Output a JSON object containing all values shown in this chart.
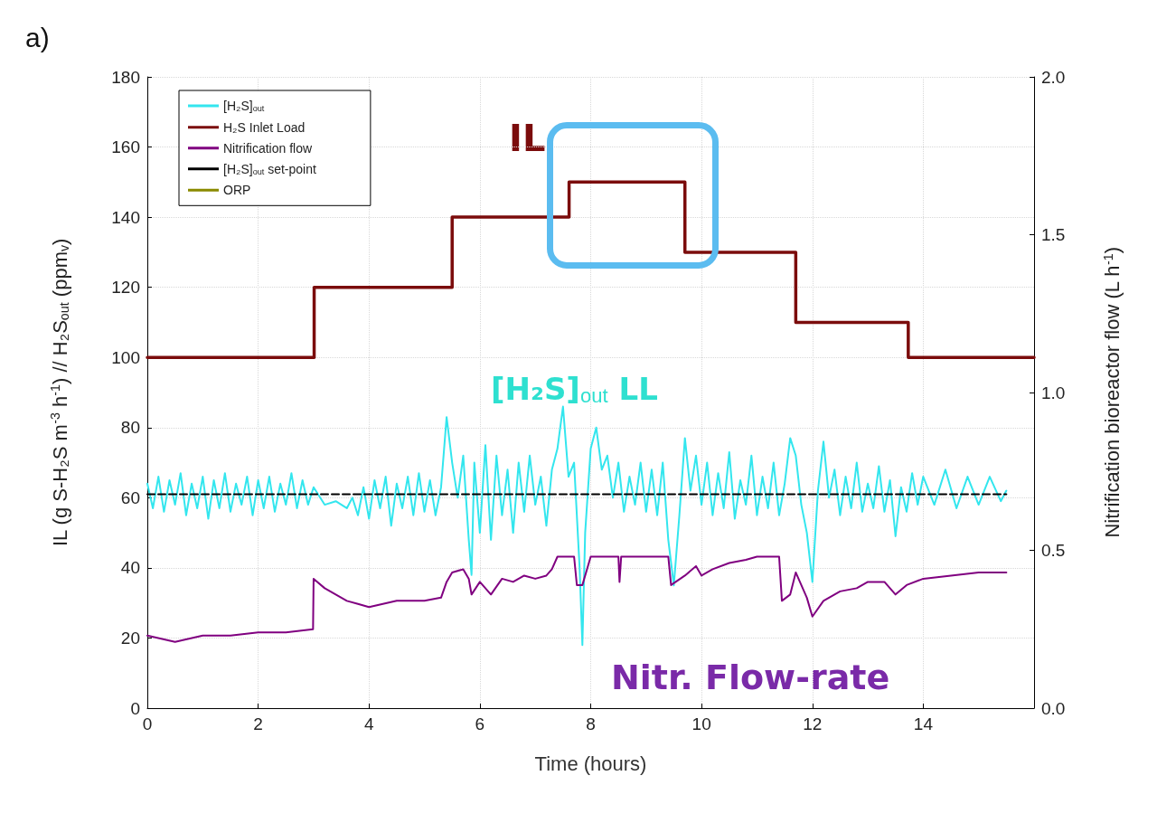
{
  "chart_data": {
    "type": "line",
    "title": "a)",
    "xlabel": "Time (hours)",
    "ylabel": "IL (g S-H₂S m$^{-3}$ h$^{-1}$) // H₂S$_{out}$ (ppm$_{v}$)",
    "y2label": "Nitrification bioreactor flow (L h$^{-1}$)",
    "annotations": [
      "IL",
      "[H₂S]$_{out}$ LL",
      "Nitr. Flow-rate"
    ],
    "xlim": [
      0,
      16
    ],
    "xticks": [
      0,
      2,
      4,
      6,
      8,
      10,
      12,
      14
    ],
    "ylim": [
      0,
      180
    ],
    "yticks": [
      0,
      20,
      40,
      60,
      80,
      100,
      120,
      140,
      160,
      180
    ],
    "y2lim": [
      0,
      2
    ],
    "y2ticks": [
      {
        "value": 0,
        "label": "0.0"
      },
      {
        "value": 0.5,
        "label": "0.5"
      },
      {
        "value": 1,
        "label": "1.0"
      },
      {
        "value": 1.5,
        "label": "1.5"
      },
      {
        "value": 2,
        "label": "2.0"
      }
    ],
    "grid": true,
    "legend": "top left",
    "marker": "none",
    "series": [
      {
        "name": "[H₂S]$_{out}$",
        "color": "#33e6ee",
        "x": [
          0,
          0.1,
          0.2,
          0.3,
          0.4,
          0.5,
          0.6,
          0.7,
          0.8,
          0.9,
          1.0,
          1.1,
          1.2,
          1.3,
          1.4,
          1.5,
          1.6,
          1.7,
          1.8,
          1.9,
          2.0,
          2.1,
          2.2,
          2.3,
          2.4,
          2.5,
          2.6,
          2.7,
          2.8,
          2.9,
          3.0,
          3.2,
          3.4,
          3.6,
          3.7,
          3.8,
          3.9,
          4.0,
          4.1,
          4.2,
          4.3,
          4.4,
          4.5,
          4.6,
          4.7,
          4.8,
          4.9,
          5.0,
          5.1,
          5.2,
          5.3,
          5.4,
          5.5,
          5.6,
          5.7,
          5.8,
          5.85,
          5.9,
          6.0,
          6.1,
          6.2,
          6.3,
          6.4,
          6.5,
          6.6,
          6.7,
          6.8,
          6.9,
          7.0,
          7.1,
          7.2,
          7.3,
          7.4,
          7.5,
          7.6,
          7.7,
          7.8,
          7.85,
          7.9,
          8.0,
          8.1,
          8.2,
          8.3,
          8.4,
          8.5,
          8.6,
          8.7,
          8.8,
          8.9,
          9.0,
          9.1,
          9.2,
          9.3,
          9.4,
          9.5,
          9.6,
          9.7,
          9.8,
          9.9,
          10.0,
          10.1,
          10.2,
          10.3,
          10.4,
          10.5,
          10.6,
          10.7,
          10.8,
          10.9,
          11.0,
          11.1,
          11.2,
          11.3,
          11.4,
          11.5,
          11.6,
          11.7,
          11.8,
          11.9,
          12.0,
          12.1,
          12.2,
          12.3,
          12.4,
          12.5,
          12.6,
          12.7,
          12.8,
          12.9,
          13.0,
          13.1,
          13.2,
          13.3,
          13.4,
          13.5,
          13.6,
          13.7,
          13.8,
          13.9,
          14.0,
          14.2,
          14.4,
          14.6,
          14.8,
          15.0,
          15.2,
          15.4,
          15.5
        ],
        "values": [
          64,
          57,
          66,
          56,
          65,
          58,
          67,
          55,
          64,
          57,
          66,
          54,
          65,
          57,
          67,
          56,
          64,
          58,
          66,
          55,
          65,
          57,
          66,
          56,
          64,
          58,
          67,
          57,
          65,
          58,
          63,
          58,
          59,
          57,
          60,
          55,
          63,
          54,
          65,
          57,
          66,
          52,
          64,
          57,
          66,
          55,
          67,
          56,
          65,
          55,
          63,
          83,
          70,
          60,
          72,
          48,
          38,
          70,
          50,
          75,
          48,
          72,
          55,
          68,
          50,
          70,
          56,
          72,
          58,
          66,
          52,
          68,
          74,
          86,
          66,
          70,
          40,
          18,
          50,
          74,
          80,
          68,
          72,
          60,
          70,
          56,
          66,
          58,
          70,
          56,
          68,
          55,
          70,
          48,
          35,
          55,
          77,
          62,
          72,
          58,
          70,
          55,
          67,
          57,
          73,
          54,
          65,
          58,
          72,
          55,
          66,
          57,
          70,
          55,
          64,
          77,
          72,
          58,
          50,
          36,
          62,
          76,
          60,
          68,
          55,
          66,
          57,
          70,
          56,
          64,
          57,
          69,
          56,
          65,
          49,
          63,
          56,
          67,
          58,
          66,
          58,
          68,
          57,
          66,
          58,
          66,
          59,
          62
        ]
      },
      {
        "name": "H₂S Inlet Load",
        "type": "step",
        "color": "#7b0c0c",
        "x": [
          0,
          3.01,
          5.5,
          7.61,
          9.7,
          11.7,
          13.73,
          16
        ],
        "values": [
          100,
          120,
          140,
          150,
          130,
          110,
          100,
          100
        ]
      },
      {
        "name": "Nitrification flow",
        "axis": "y2",
        "color": "#800080",
        "x": [
          0,
          0.5,
          1.0,
          1.5,
          2.0,
          2.5,
          2.99,
          3.0,
          3.2,
          3.4,
          3.6,
          3.8,
          4.0,
          4.5,
          5.0,
          5.3,
          5.4,
          5.5,
          5.7,
          5.8,
          5.85,
          6.0,
          6.2,
          6.4,
          6.6,
          6.8,
          7.0,
          7.2,
          7.3,
          7.4,
          7.7,
          7.75,
          7.85,
          8.0,
          8.5,
          8.52,
          8.55,
          9.0,
          9.4,
          9.45,
          9.7,
          9.9,
          10.0,
          10.2,
          10.5,
          10.8,
          11.0,
          11.4,
          11.45,
          11.6,
          11.7,
          11.9,
          12.0,
          12.2,
          12.5,
          12.8,
          13.0,
          13.3,
          13.5,
          13.7,
          14.0,
          14.5,
          15.0,
          15.5
        ],
        "values": [
          0.23,
          0.21,
          0.23,
          0.23,
          0.24,
          0.24,
          0.25,
          0.41,
          0.38,
          0.36,
          0.34,
          0.33,
          0.32,
          0.34,
          0.34,
          0.35,
          0.4,
          0.43,
          0.44,
          0.41,
          0.36,
          0.4,
          0.36,
          0.41,
          0.4,
          0.42,
          0.41,
          0.42,
          0.44,
          0.48,
          0.48,
          0.39,
          0.39,
          0.48,
          0.48,
          0.4,
          0.48,
          0.48,
          0.48,
          0.39,
          0.42,
          0.45,
          0.42,
          0.44,
          0.46,
          0.47,
          0.48,
          0.48,
          0.34,
          0.36,
          0.43,
          0.35,
          0.29,
          0.34,
          0.37,
          0.38,
          0.4,
          0.4,
          0.36,
          0.39,
          0.41,
          0.42,
          0.43,
          0.43
        ]
      },
      {
        "name": "[H₂S]$_{out}$ set-point",
        "line_style": "dashed",
        "color": "#000000",
        "x": [
          0,
          15.5
        ],
        "values": [
          61,
          61
        ]
      },
      {
        "name": "ORP",
        "color": "#8a8a00"
      }
    ]
  }
}
